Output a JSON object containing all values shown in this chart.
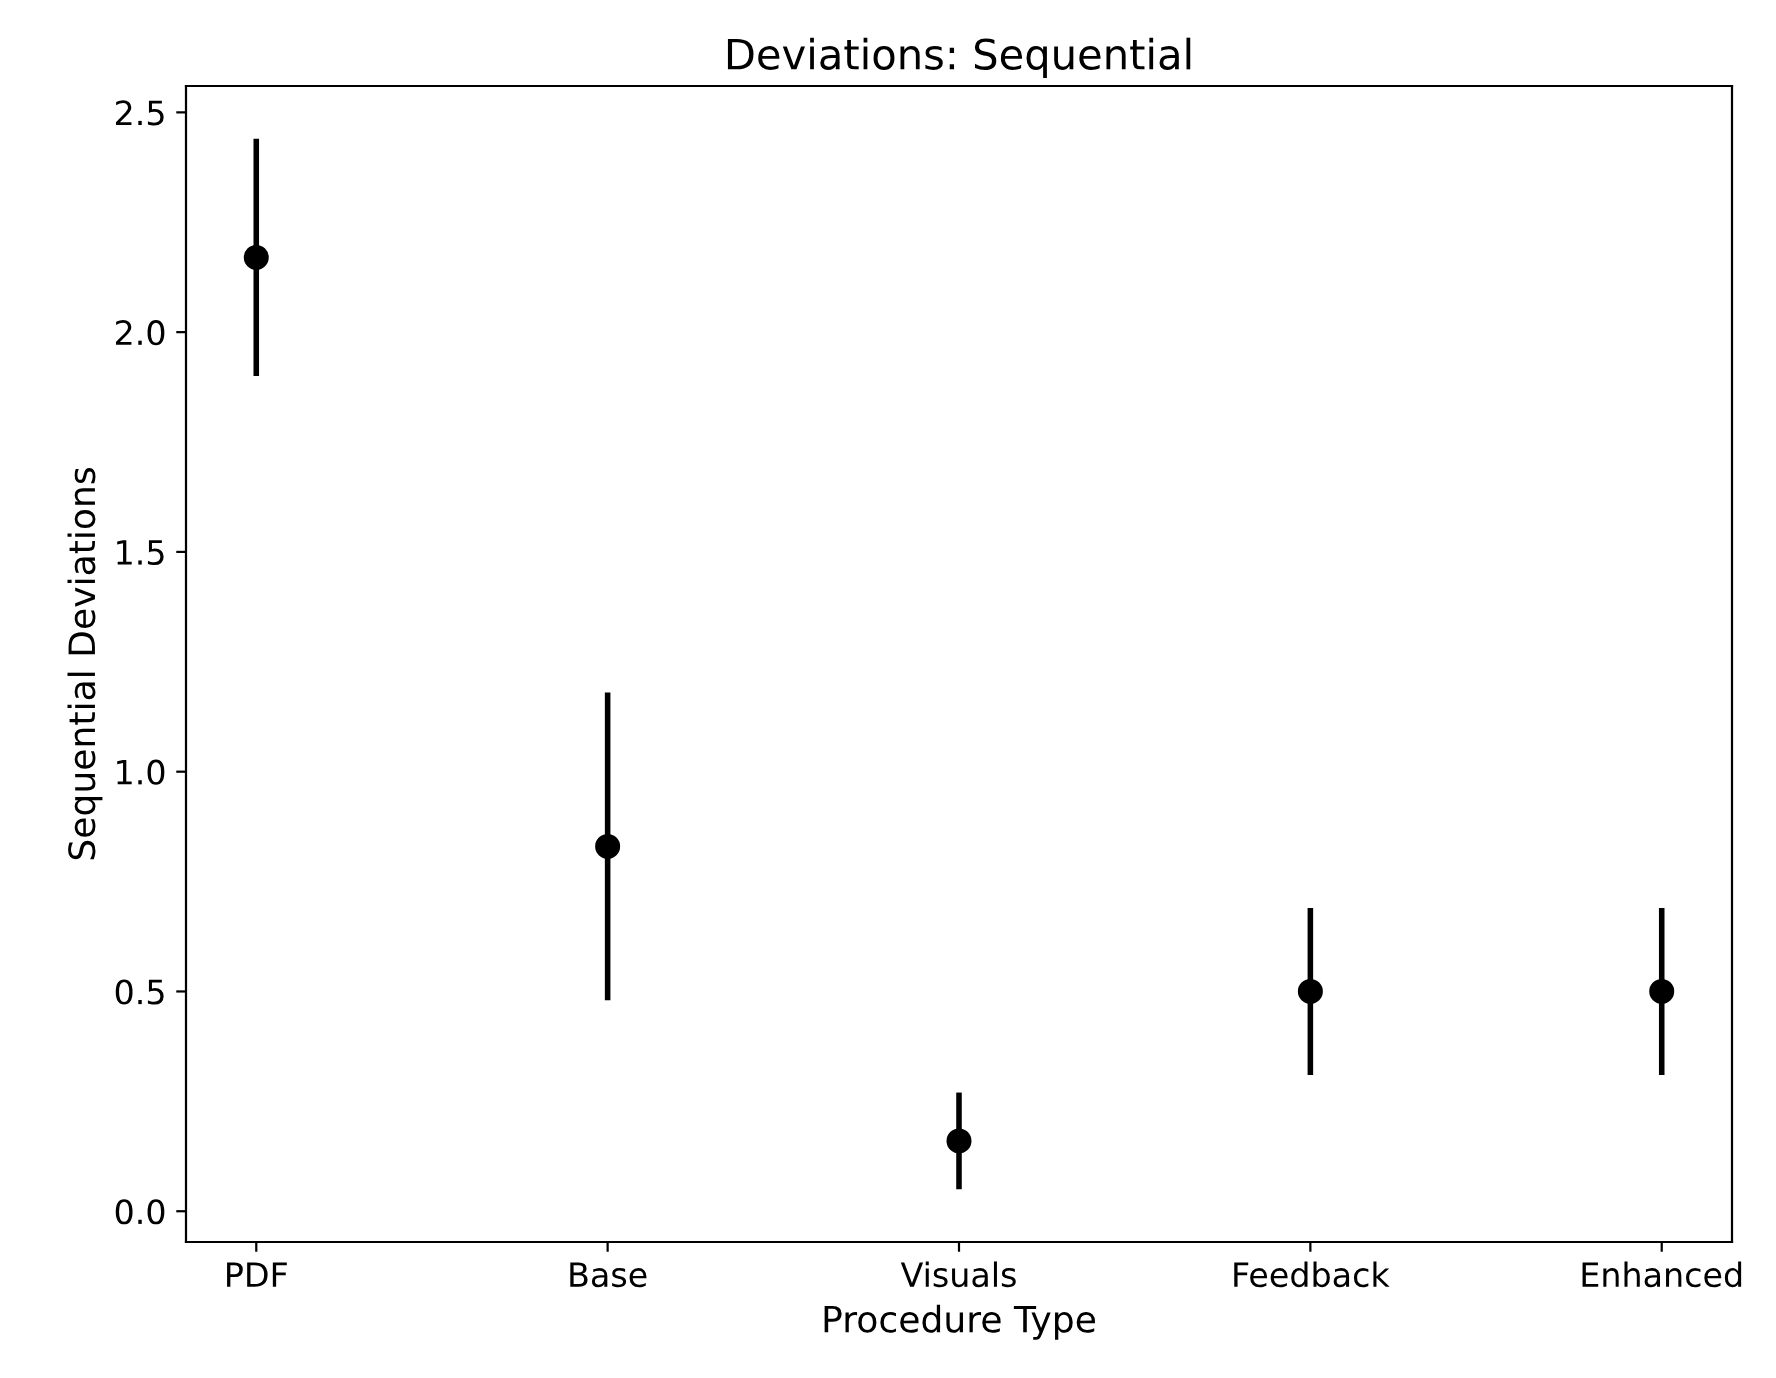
{
  "chart_data": {
    "type": "scatter",
    "title": "Deviations: Sequential",
    "xlabel": "Procedure Type",
    "ylabel": "Sequential Deviations",
    "categories": [
      "PDF",
      "Base",
      "Visuals",
      "Feedback",
      "Enhanced"
    ],
    "values": [
      2.17,
      0.83,
      0.16,
      0.5,
      0.5
    ],
    "errors": [
      0.27,
      0.35,
      0.11,
      0.19,
      0.19
    ],
    "color": "#000000",
    "marker": "circle",
    "ylim": [
      -0.07,
      2.56
    ],
    "yticks": [
      {
        "value": 0,
        "label": "0.0"
      },
      0.5,
      {
        "value": 1,
        "label": "1.0"
      },
      1.5,
      {
        "value": 2,
        "label": "2.0"
      },
      2.5
    ],
    "grid": false,
    "legend": false
  }
}
